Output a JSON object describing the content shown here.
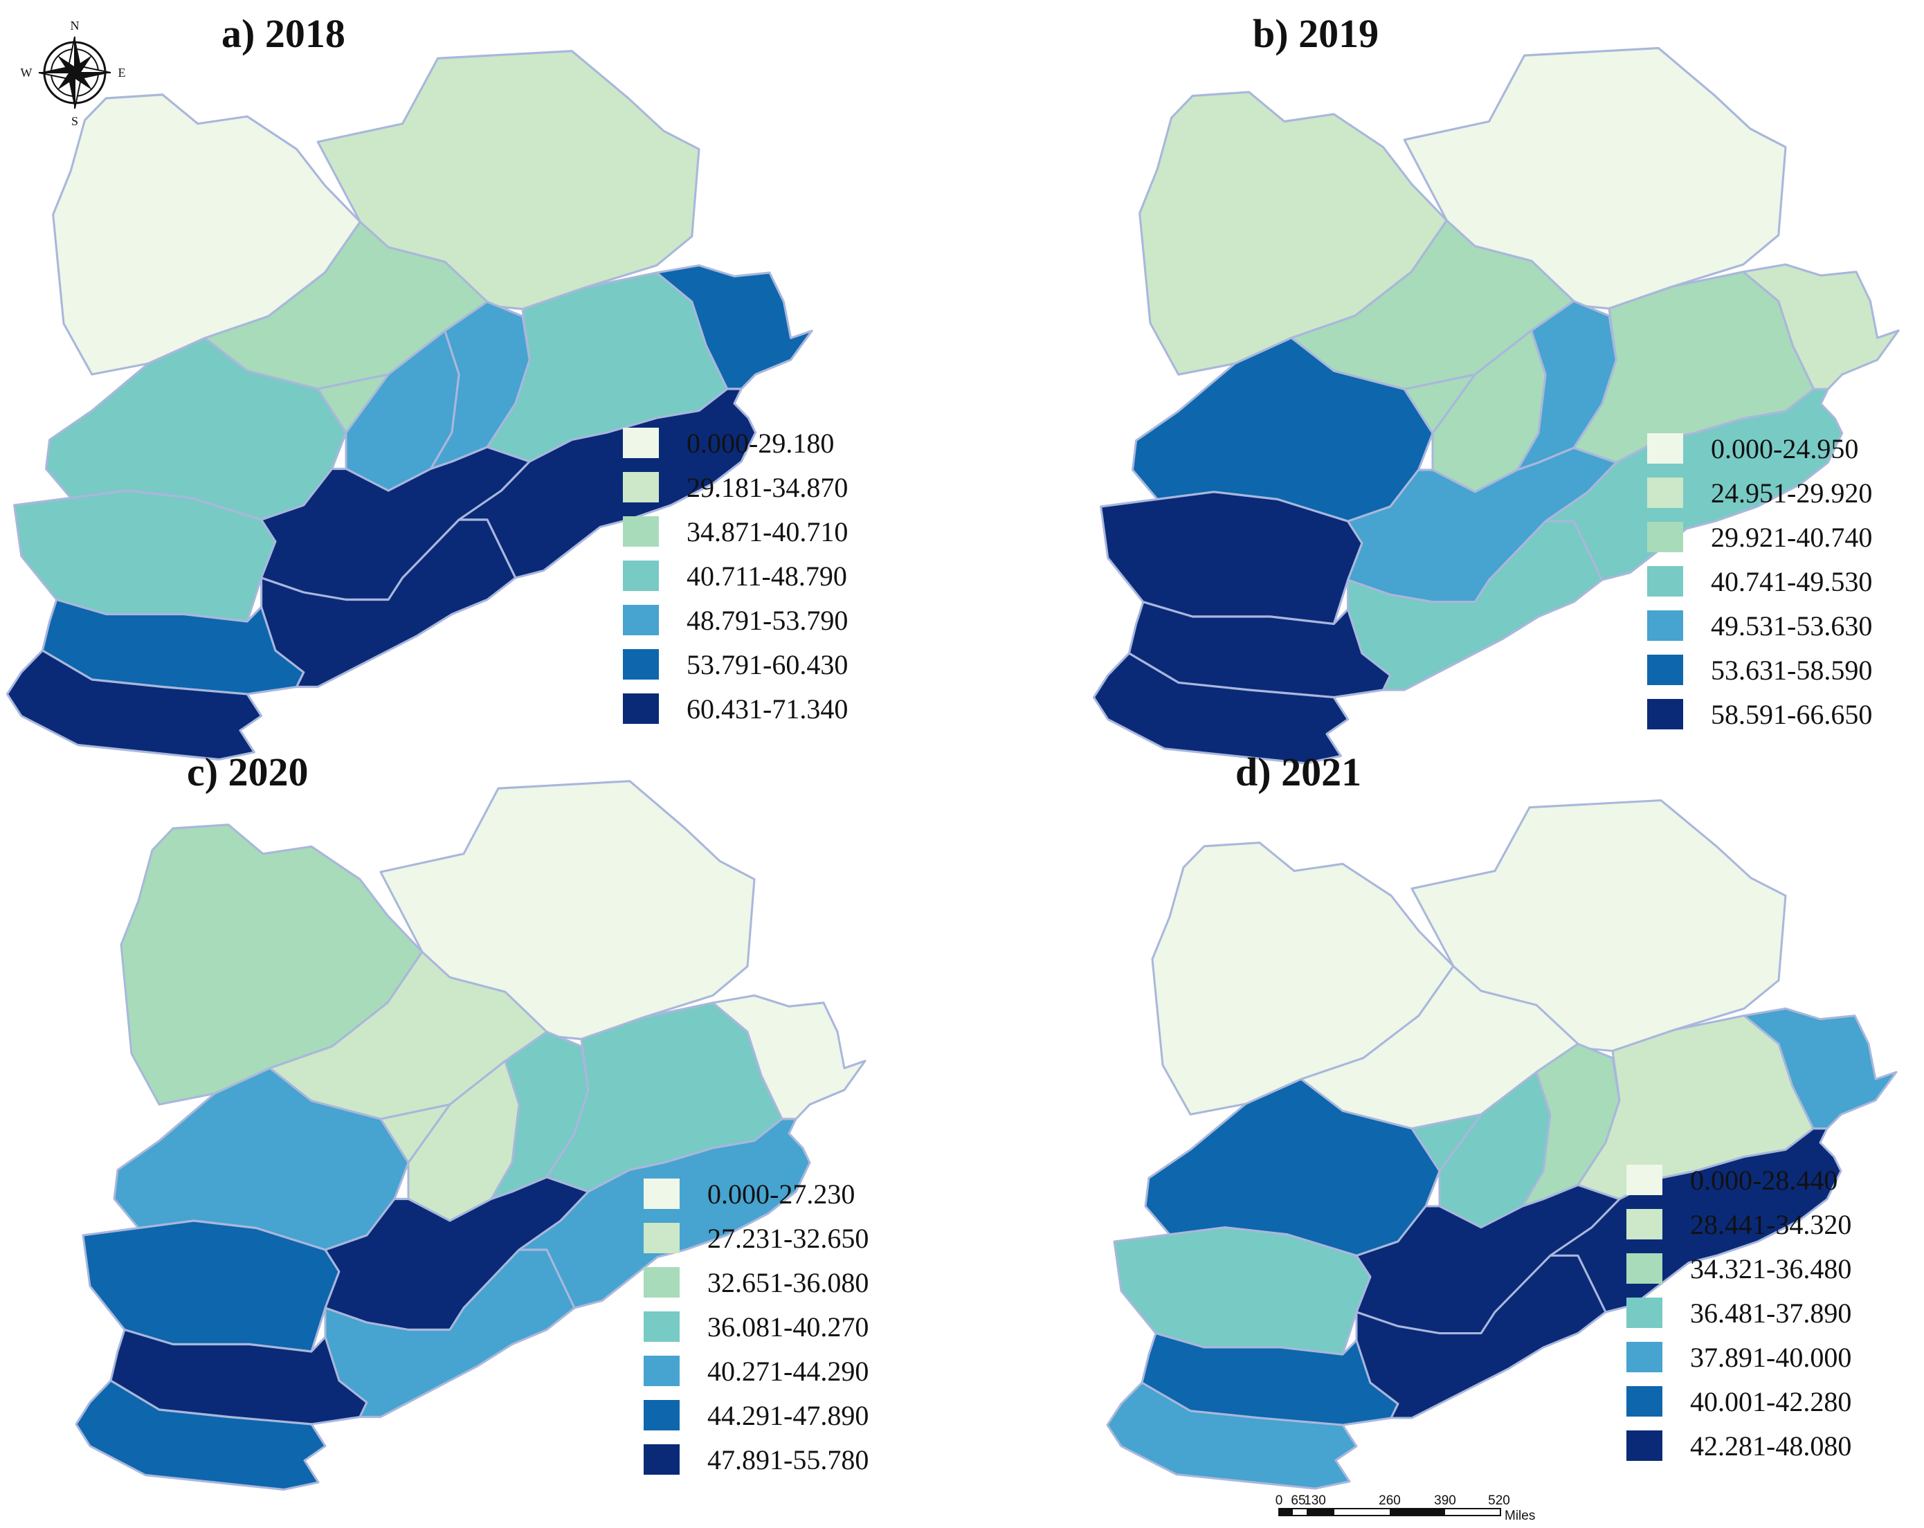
{
  "colors": {
    "c0": "#eef7e8",
    "c1": "#cce8c8",
    "c2": "#a8dbb9",
    "c3": "#78cac4",
    "c4": "#47a3cf",
    "c5": "#0e66ad",
    "c6": "#0a2a78"
  },
  "compass": {
    "n": "N",
    "s": "S",
    "e": "E",
    "w": "W"
  },
  "scalebar": {
    "ticks": [
      "0",
      "65",
      "130",
      "260",
      "390",
      "520"
    ],
    "unit": "Miles"
  },
  "panels": [
    {
      "title": "a) 2018",
      "legend": [
        "0.000-29.180",
        "29.181-34.870",
        "34.871-40.710",
        "40.711-48.790",
        "48.791-53.790",
        "53.791-60.430",
        "60.431-71.340"
      ],
      "region_classes": {
        "R_NW": 0,
        "R_NE": 1,
        "R_NC": 2,
        "R_CW": 3,
        "R_W": 3,
        "R_SWM": 5,
        "R_SW": 6,
        "R_CC": 4,
        "R_CE": 4,
        "R_CEN": 3,
        "R_EE": 5,
        "R_SC": 6,
        "R_SE": 6,
        "R_SEB": 6,
        "R_NCS": 2
      }
    },
    {
      "title": "b) 2019",
      "legend": [
        "0.000-24.950",
        "24.951-29.920",
        "29.921-40.740",
        "40.741-49.530",
        "49.531-53.630",
        "53.631-58.590",
        "58.591-66.650"
      ],
      "region_classes": {
        "R_NW": 1,
        "R_NE": 0,
        "R_NC": 2,
        "R_CW": 5,
        "R_W": 6,
        "R_SWM": 6,
        "R_SW": 6,
        "R_CC": 2,
        "R_CE": 4,
        "R_CEN": 2,
        "R_EE": 1,
        "R_SC": 4,
        "R_SE": 3,
        "R_SEB": 3,
        "R_NCS": 2
      }
    },
    {
      "title": "c) 2020",
      "legend": [
        "0.000-27.230",
        "27.231-32.650",
        "32.651-36.080",
        "36.081-40.270",
        "40.271-44.290",
        "44.291-47.890",
        "47.891-55.780"
      ],
      "region_classes": {
        "R_NW": 2,
        "R_NE": 0,
        "R_NC": 1,
        "R_CW": 4,
        "R_W": 5,
        "R_SWM": 6,
        "R_SW": 5,
        "R_CC": 1,
        "R_CE": 3,
        "R_CEN": 3,
        "R_EE": 0,
        "R_SC": 6,
        "R_SE": 4,
        "R_SEB": 4,
        "R_NCS": 1
      }
    },
    {
      "title": "d) 2021",
      "legend": [
        "0.000-28.440",
        "28.441-34.320",
        "34.321-36.480",
        "36.481-37.890",
        "37.891-40.000",
        "40.001-42.280",
        "42.281-48.080"
      ],
      "region_classes": {
        "R_NW": 0,
        "R_NE": 0,
        "R_NC": 0,
        "R_CW": 5,
        "R_W": 3,
        "R_SWM": 5,
        "R_SW": 4,
        "R_CC": 3,
        "R_CE": 2,
        "R_CEN": 1,
        "R_EE": 4,
        "R_SC": 6,
        "R_SE": 6,
        "R_SEB": 6,
        "R_NCS": 3
      }
    }
  ]
}
